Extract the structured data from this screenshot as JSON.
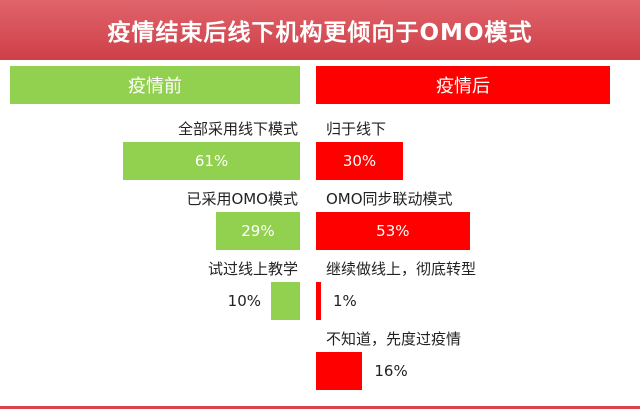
{
  "title": "疫情结束后线下机构更倾向于OMO模式",
  "colors": {
    "before": "#92d050",
    "after": "#ff0000",
    "banner": "#d9434c"
  },
  "chart_data": {
    "type": "bar",
    "title": "疫情结束后线下机构更倾向于OMO模式",
    "value_unit": "%",
    "series": [
      {
        "name": "疫情前",
        "color": "#92d050",
        "categories": [
          "全部采用线下模式",
          "已采用OMO模式",
          "试过线上教学"
        ],
        "values": [
          61,
          29,
          10
        ],
        "labels": [
          "61%",
          "29%",
          "10%"
        ]
      },
      {
        "name": "疫情后",
        "color": "#ff0000",
        "categories": [
          "归于线下",
          "OMO同步联动模式",
          "继续做线上，彻底转型",
          "不知道，先度过疫情"
        ],
        "values": [
          30,
          53,
          1,
          16
        ],
        "labels": [
          "30%",
          "53%",
          "1%",
          "16%"
        ]
      }
    ]
  }
}
